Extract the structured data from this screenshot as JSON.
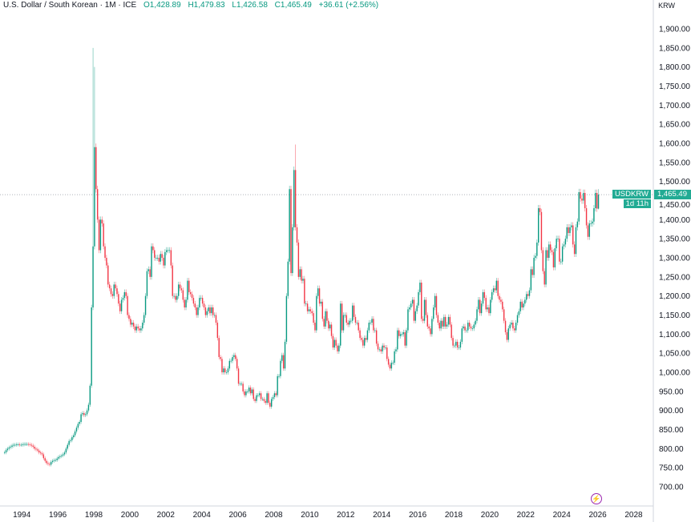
{
  "header": {
    "symbol_title": "U.S. Dollar / South Korean · 1M · ICE",
    "open": "O1,428.89",
    "high": "H1,479.83",
    "low": "L1,426.58",
    "close": "C1,465.49",
    "change": "+36.61 (+2.56%)"
  },
  "currency_label": "KRW",
  "price_tag": {
    "symbol": "USDKRW",
    "price": "1,465.49",
    "countdown": "1d 11h"
  },
  "icons": {
    "replay": "lightning-icon"
  },
  "colors": {
    "up": "#089981",
    "down": "#f23645",
    "tag": "#22ab94",
    "replay_icon": "#9c27b0"
  },
  "chart_data": {
    "type": "candlestick",
    "title": "U.S. Dollar / South Korean · 1M · ICE",
    "interval": "1M",
    "ylim": [
      650,
      1925
    ],
    "yticks": [
      "1,900.00",
      "1,850.00",
      "1,800.00",
      "1,750.00",
      "1,700.00",
      "1,650.00",
      "1,600.00",
      "1,550.00",
      "1,500.00",
      "1,450.00",
      "1,400.00",
      "1,350.00",
      "1,300.00",
      "1,250.00",
      "1,200.00",
      "1,150.00",
      "1,100.00",
      "1,050.00",
      "1,000.00",
      "950.00",
      "900.00",
      "850.00",
      "800.00",
      "750.00",
      "700.00"
    ],
    "xticks": [
      "1994",
      "1996",
      "1998",
      "2000",
      "2002",
      "2004",
      "2006",
      "2008",
      "2010",
      "2012",
      "2014",
      "2016",
      "2018",
      "2020",
      "2022",
      "2024",
      "2026",
      "2028"
    ],
    "grid": false,
    "last_price": 1465.49,
    "monthly_close": {
      "1993": [
        790,
        796,
        800,
        803,
        805,
        808,
        810,
        810,
        811,
        811,
        810,
        810
      ],
      "1994": [
        811,
        812,
        812,
        812,
        811,
        810,
        808,
        805,
        800,
        798,
        795,
        790
      ],
      "1995": [
        788,
        785,
        775,
        768,
        762,
        760,
        758,
        765,
        768,
        770,
        770,
        774
      ],
      "1996": [
        778,
        780,
        782,
        785,
        790,
        800,
        810,
        820,
        822,
        830,
        835,
        845
      ],
      "1997": [
        855,
        865,
        870,
        890,
        893,
        888,
        890,
        900,
        915,
        965,
        1170,
        1330
      ],
      "1998": [
        1590,
        1480,
        1400,
        1320,
        1400,
        1390,
        1330,
        1300,
        1280,
        1230,
        1220,
        1205
      ],
      "1999": [
        1200,
        1230,
        1220,
        1205,
        1180,
        1160,
        1190,
        1195,
        1210,
        1200,
        1150,
        1140
      ],
      "2000": [
        1125,
        1130,
        1120,
        1110,
        1120,
        1115,
        1110,
        1115,
        1130,
        1150,
        1200,
        1265
      ],
      "2001": [
        1270,
        1250,
        1330,
        1320,
        1300,
        1300,
        1300,
        1290,
        1310,
        1300,
        1280,
        1315
      ],
      "2002": [
        1320,
        1320,
        1320,
        1280,
        1200,
        1200,
        1190,
        1200,
        1230,
        1220,
        1215,
        1190
      ],
      "2003": [
        1170,
        1190,
        1240,
        1210,
        1205,
        1195,
        1180,
        1170,
        1150,
        1170,
        1195,
        1195
      ],
      "2004": [
        1180,
        1170,
        1150,
        1160,
        1170,
        1155,
        1170,
        1150,
        1150,
        1130,
        1090,
        1040
      ],
      "2005": [
        1035,
        1000,
        1010,
        1000,
        1000,
        1010,
        1030,
        1030,
        1040,
        1045,
        1035,
        1010
      ],
      "2006": [
        970,
        970,
        970,
        950,
        940,
        950,
        950,
        960,
        945,
        955,
        930,
        925
      ],
      "2007": [
        940,
        940,
        945,
        930,
        930,
        925,
        920,
        945,
        920,
        910,
        930,
        935
      ],
      "2008": [
        945,
        940,
        990,
        990,
        1030,
        1045,
        1010,
        1080,
        1200,
        1290,
        1480,
        1260
      ],
      "2009": [
        1380,
        1530,
        1380,
        1340,
        1250,
        1270,
        1240,
        1245,
        1180,
        1180,
        1160,
        1165
      ],
      "2010": [
        1160,
        1155,
        1130,
        1110,
        1200,
        1220,
        1180,
        1185,
        1140,
        1120,
        1160,
        1135
      ],
      "2011": [
        1115,
        1125,
        1095,
        1065,
        1085,
        1070,
        1055,
        1070,
        1180,
        1110,
        1150,
        1150
      ],
      "2012": [
        1130,
        1125,
        1135,
        1135,
        1175,
        1145,
        1130,
        1130,
        1110,
        1090,
        1085,
        1070
      ],
      "2013": [
        1090,
        1085,
        1110,
        1130,
        1130,
        1140,
        1110,
        1110,
        1075,
        1060,
        1060,
        1055
      ],
      "2014": [
        1070,
        1065,
        1065,
        1035,
        1020,
        1010,
        1025,
        1025,
        1055,
        1060,
        1110,
        1095
      ],
      "2015": [
        1100,
        1100,
        1105,
        1070,
        1110,
        1165,
        1170,
        1180,
        1190,
        1135,
        1160,
        1175
      ],
      "2016": [
        1210,
        1235,
        1140,
        1135,
        1190,
        1150,
        1120,
        1115,
        1100,
        1140,
        1170,
        1200
      ],
      "2017": [
        1150,
        1130,
        1115,
        1135,
        1120,
        1145,
        1120,
        1125,
        1145,
        1125,
        1090,
        1070
      ],
      "2018": [
        1070,
        1080,
        1065,
        1065,
        1080,
        1115,
        1120,
        1110,
        1110,
        1130,
        1120,
        1115
      ],
      "2019": [
        1115,
        1125,
        1135,
        1165,
        1190,
        1155,
        1180,
        1210,
        1195,
        1165,
        1170,
        1155
      ],
      "2020": [
        1190,
        1210,
        1220,
        1215,
        1240,
        1200,
        1190,
        1185,
        1165,
        1135,
        1105,
        1085
      ],
      "2021": [
        1115,
        1125,
        1130,
        1115,
        1110,
        1130,
        1150,
        1160,
        1185,
        1170,
        1180,
        1190
      ],
      "2022": [
        1205,
        1200,
        1215,
        1270,
        1255,
        1300,
        1305,
        1340,
        1430,
        1420,
        1320,
        1265
      ],
      "2023": [
        1230,
        1320,
        1300,
        1335,
        1320,
        1315,
        1275,
        1325,
        1350,
        1350,
        1290,
        1290
      ],
      "2024": [
        1330,
        1335,
        1350,
        1380,
        1365,
        1380,
        1385,
        1335,
        1310,
        1380,
        1395,
        1472
      ],
      "2025": [
        1455,
        1450,
        1470,
        1430,
        1385,
        1355,
        1390,
        1390,
        1395,
        1430,
        1470,
        1428.89
      ],
      "2026": [
        1465.49
      ]
    },
    "notable_highs": {
      "1997-12": 1850,
      "1998-01": 1800,
      "2009-03": 1597,
      "2026-01": 1479.83
    },
    "last_bar": {
      "open": 1428.89,
      "high": 1479.83,
      "low": 1426.58,
      "close": 1465.49
    }
  }
}
